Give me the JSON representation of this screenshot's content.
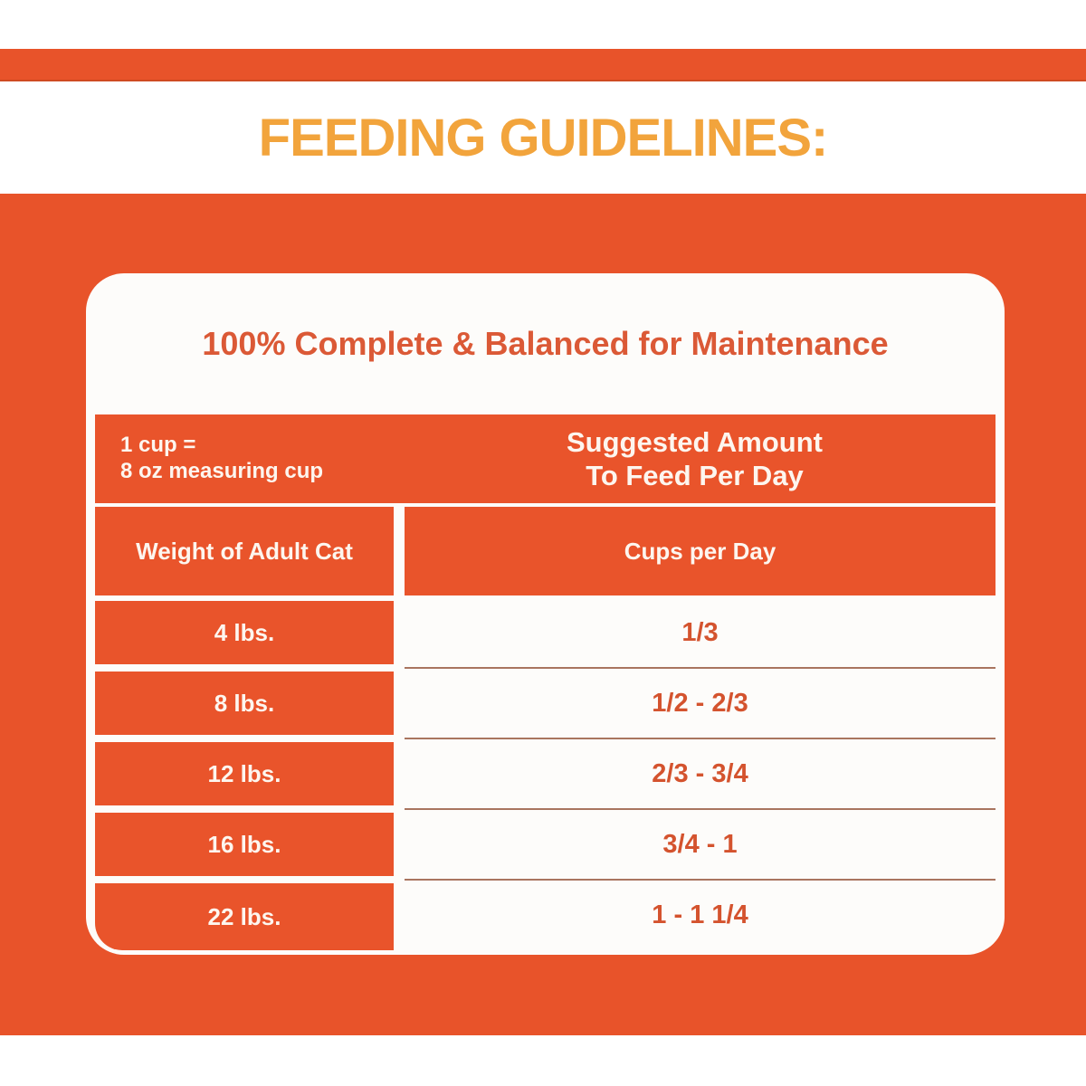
{
  "colors": {
    "orange": "#e8532a",
    "table_orange": "#e9542b",
    "headline_gold": "#f2a43c",
    "card_title_orange": "#db5936",
    "value_orange": "#d4532e",
    "separator_brown": "#a9755f",
    "card_white": "#fdfcfa"
  },
  "headline": {
    "title": "FEEDING GUIDELINES:"
  },
  "card": {
    "title": "100% Complete & Balanced for Maintenance"
  },
  "table": {
    "header": {
      "cup_note_line1": "1 cup =",
      "cup_note_line2": "8 oz measuring cup",
      "suggested_line1": "Suggested Amount",
      "suggested_line2": "To Feed Per Day"
    },
    "columns": {
      "weight": "Weight of Adult Cat",
      "cups": "Cups per Day"
    },
    "rows": [
      {
        "weight": "4 lbs.",
        "cups": "1/3"
      },
      {
        "weight": "8 lbs.",
        "cups": "1/2 - 2/3"
      },
      {
        "weight": "12 lbs.",
        "cups": "2/3 - 3/4"
      },
      {
        "weight": "16 lbs.",
        "cups": "3/4 - 1"
      },
      {
        "weight": "22 lbs.",
        "cups": "1 - 1 1/4"
      }
    ]
  },
  "chart_data": {
    "type": "table",
    "title": "FEEDING GUIDELINES: 100% Complete & Balanced for Maintenance",
    "note": "1 cup = 8 oz measuring cup; Suggested Amount To Feed Per Day",
    "columns": [
      "Weight of Adult Cat",
      "Cups per Day"
    ],
    "rows": [
      [
        "4 lbs.",
        "1/3"
      ],
      [
        "8 lbs.",
        "1/2 - 2/3"
      ],
      [
        "12 lbs.",
        "2/3 - 3/4"
      ],
      [
        "16 lbs.",
        "3/4 - 1"
      ],
      [
        "22 lbs.",
        "1 - 1 1/4"
      ]
    ]
  }
}
